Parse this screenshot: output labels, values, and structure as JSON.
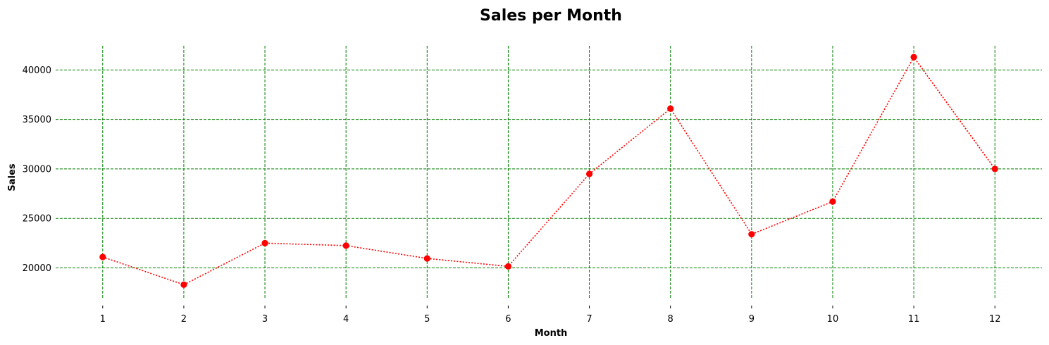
{
  "chart_data": {
    "type": "line",
    "title": "Sales per Month",
    "xlabel": "Month",
    "ylabel": "Sales",
    "x": [
      1,
      2,
      3,
      4,
      5,
      6,
      7,
      8,
      9,
      10,
      11,
      12
    ],
    "series": [
      {
        "values": [
          21100,
          18300,
          22500,
          22250,
          20950,
          20150,
          29500,
          36100,
          23400,
          26700,
          41300,
          30000
        ]
      }
    ],
    "x_ticks": [
      1,
      2,
      3,
      4,
      5,
      6,
      7,
      8,
      9,
      10,
      11,
      12
    ],
    "y_ticks": [
      20000,
      25000,
      30000,
      35000,
      40000
    ],
    "xlim": [
      0.42,
      12.58
    ],
    "ylim": [
      16900,
      42450
    ],
    "grid": true,
    "legend": "none",
    "colors": {
      "line": "#ff0000",
      "marker": "#ff0000",
      "grid": "#008000"
    },
    "line_style": "dotted",
    "marker": "circle"
  }
}
